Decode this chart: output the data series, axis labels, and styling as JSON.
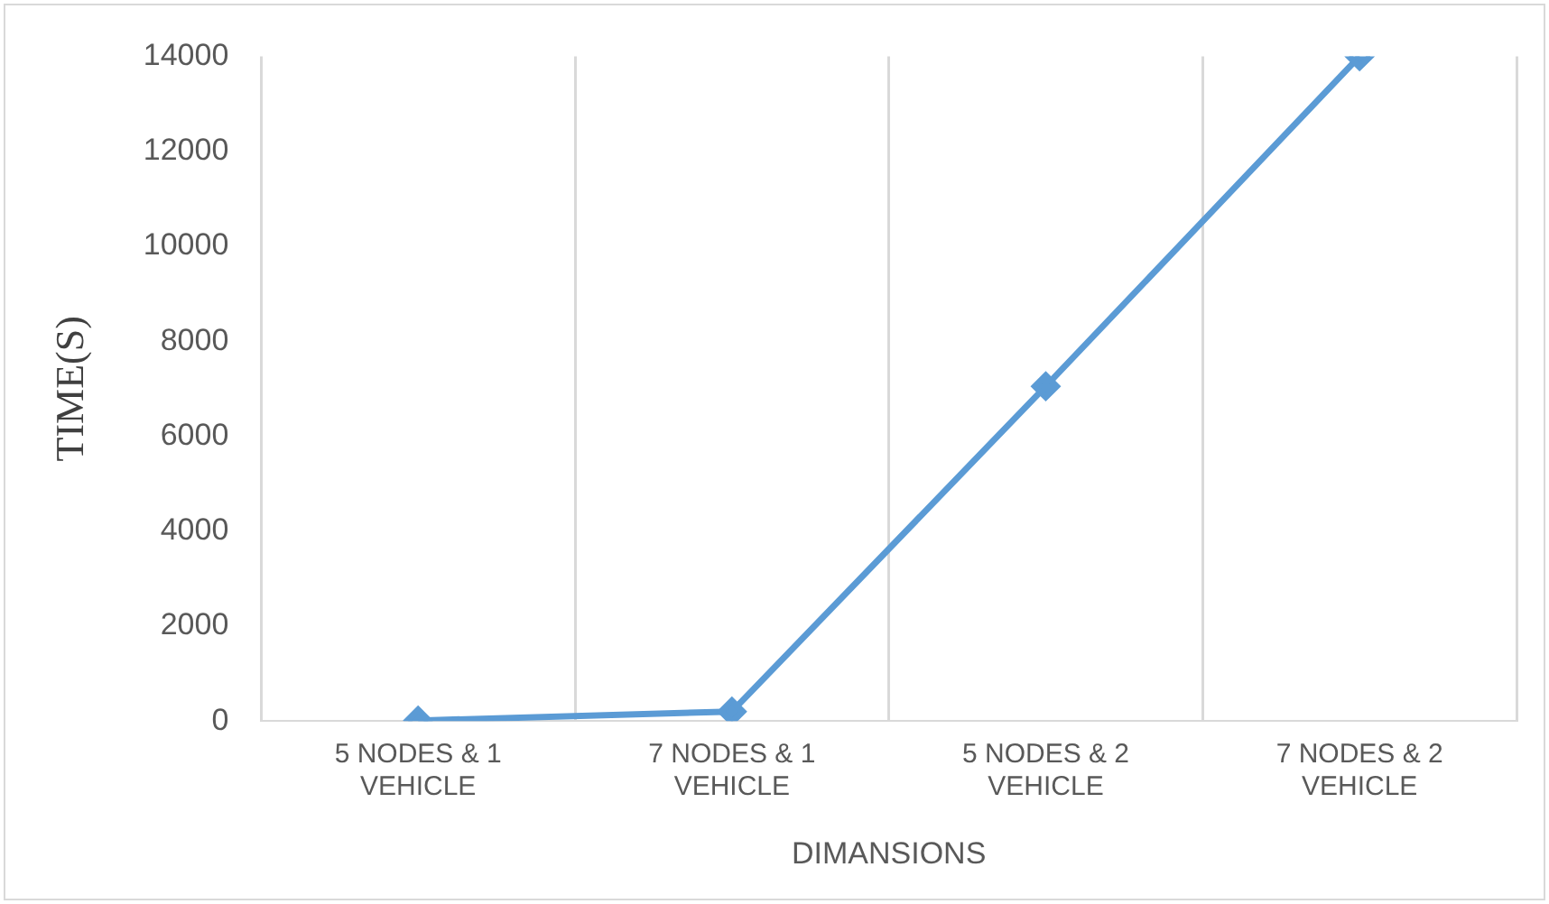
{
  "chart_data": {
    "type": "line",
    "categories": [
      "5 NODES & 1 VEHICLE",
      "7 NODES & 1 VEHICLE",
      "5 NODES & 2 VEHICLE",
      "7 NODES & 2 VEHICLE"
    ],
    "series": [
      {
        "color": "#5b9bd5",
        "values": [
          10,
          200,
          7050,
          14000
        ]
      }
    ],
    "xlabel": "DIMANSIONS",
    "ylabel": "TIME(S)",
    "ylim": [
      0,
      14000
    ],
    "yticks": [
      0,
      2000,
      4000,
      6000,
      8000,
      10000,
      12000,
      14000
    ],
    "grid": "x",
    "legend": false,
    "marker": "diamond",
    "line_style": "solid"
  }
}
